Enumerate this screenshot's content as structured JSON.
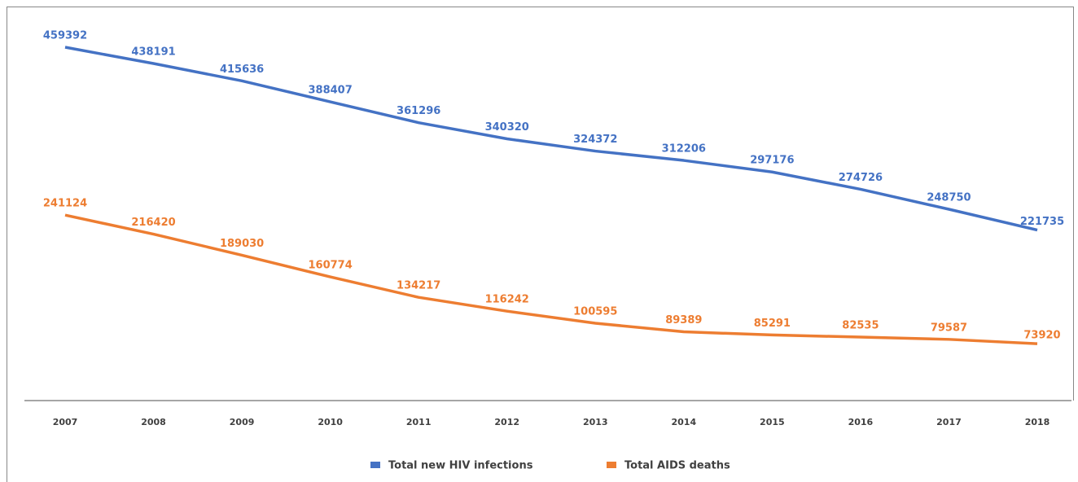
{
  "chart_data": {
    "type": "line",
    "categories": [
      "2007",
      "2008",
      "2009",
      "2010",
      "2011",
      "2012",
      "2013",
      "2014",
      "2015",
      "2016",
      "2017",
      "2018"
    ],
    "series": [
      {
        "name": "Total new HIV infections",
        "color": "#4472c4",
        "values": [
          459392,
          438191,
          415636,
          388407,
          361296,
          340320,
          324372,
          312206,
          297176,
          274726,
          248750,
          221735
        ]
      },
      {
        "name": "Total AIDS deaths",
        "color": "#ed7d31",
        "values": [
          241124,
          216420,
          189030,
          160774,
          134217,
          116242,
          100595,
          89389,
          85291,
          82535,
          79587,
          73920
        ]
      }
    ],
    "legend": "bottom"
  }
}
